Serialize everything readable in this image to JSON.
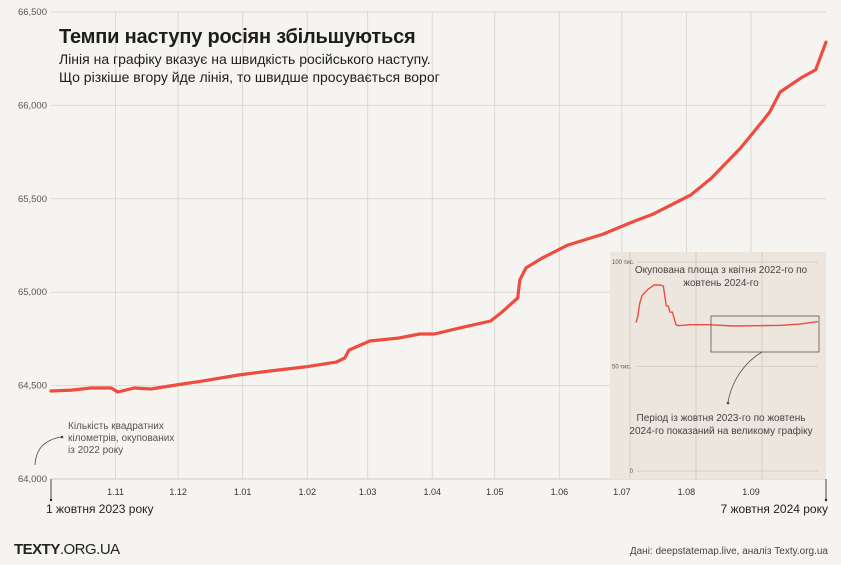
{
  "header": {
    "title": "Темпи наступу росіян збільшуються",
    "subtitle_line1": "Лінія на графіку вказує на швидкість російського наступу.",
    "subtitle_line2": "Що різкіше вгору йде лінія, то швидше просувається ворог"
  },
  "annotation": {
    "line1": "Кількість квадратних",
    "line2": "кілометрів, окупованих",
    "line3": "із 2022 року"
  },
  "footer": {
    "logo_bold": "TEXTY",
    "logo_rest": ".ORG.UA",
    "source": "Дані: deepstatemap.live, аналіз Texty.org.ua"
  },
  "colors": {
    "line": "#ee4c3f",
    "background": "#f6f4f0",
    "inset_background": "#ece6de",
    "grid": "#dcd9d3"
  },
  "chart_data": [
    {
      "type": "line",
      "title": "Темпи наступу росіян збільшуються",
      "xlabel": "",
      "ylabel": "Кількість квадратних кілометрів, окупованих із 2022 року",
      "x_start_label": "1 жовтня 2023 року",
      "x_end_label": "7 жовтня 2024 року",
      "ylim": [
        64000,
        66500
      ],
      "yticks": [
        64000,
        64500,
        65000,
        65500,
        66000,
        66500
      ],
      "ytick_labels": [
        "64,000",
        "64,500",
        "65,000",
        "65,500",
        "66,000",
        "66,500"
      ],
      "xlim_days": [
        0,
        372
      ],
      "xticks_days": [
        31,
        61,
        92,
        123,
        152,
        183,
        213,
        244,
        274,
        305,
        336
      ],
      "xtick_labels": [
        "1.11",
        "1.12",
        "1.01",
        "1.02",
        "1.03",
        "1.04",
        "1.05",
        "1.06",
        "1.07",
        "1.08",
        "1.09"
      ],
      "grid": true,
      "series": [
        {
          "name": "Окупована площа, км²",
          "x_days": [
            0,
            10,
            19,
            29,
            32,
            40,
            48,
            60,
            73,
            90,
            105,
            122,
            137,
            141,
            143,
            153,
            167,
            177,
            184,
            196,
            211,
            216,
            224,
            225,
            228,
            236,
            248,
            265,
            279,
            289,
            307,
            317,
            331,
            342,
            345,
            350,
            360,
            367,
            372
          ],
          "values": [
            64471,
            64476,
            64487,
            64487,
            64466,
            64487,
            64482,
            64503,
            64525,
            64557,
            64578,
            64600,
            64626,
            64648,
            64690,
            64739,
            64755,
            64776,
            64776,
            64808,
            64846,
            64889,
            64969,
            65066,
            65130,
            65184,
            65252,
            65311,
            65376,
            65418,
            65520,
            65611,
            65772,
            65922,
            65965,
            66072,
            66147,
            66190,
            66339
          ]
        }
      ]
    },
    {
      "type": "line",
      "title": "Окупована площа з квітня 2022-го по жовтень 2024-го",
      "ylim": [
        0,
        100000
      ],
      "ytick_labels": [
        "0",
        "50 тис.",
        "100 тис."
      ],
      "yticks": [
        0,
        50000,
        100000
      ],
      "grid": true,
      "annotation": "Період із жовтня 2023-го по жовтень 2024-го показаний на великому графіку",
      "highlight_range": "жовтень 2023 – жовтень 2024",
      "series": [
        {
          "name": "Окупована площа, км²",
          "x_months": [
            0,
            0.3,
            0.6,
            1,
            2,
            3,
            4,
            4.5,
            5,
            5.3,
            5.6,
            6,
            6.6,
            7,
            9,
            12,
            16,
            20,
            24,
            27,
            30
          ],
          "values": [
            71000,
            74000,
            80000,
            84000,
            87000,
            89000,
            89000,
            88500,
            79000,
            79000,
            76000,
            76000,
            70000,
            69500,
            70000,
            70000,
            69400,
            69500,
            69700,
            70300,
            71500
          ]
        }
      ]
    }
  ]
}
